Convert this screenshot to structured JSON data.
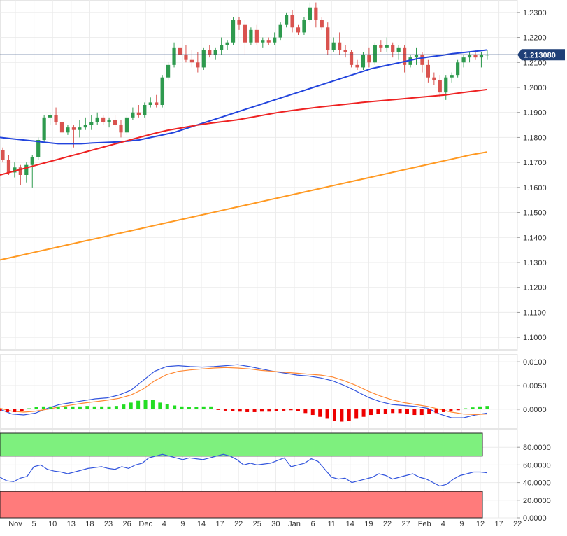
{
  "chart_data": [
    {
      "type": "candlestick",
      "panel": "price",
      "current_price": 1.21308,
      "current_price_label": "1.213080",
      "ylim": [
        1.095,
        1.235
      ],
      "y_ticks": [
        "1.2300",
        "1.2200",
        "1.2100",
        "1.2000",
        "1.1900",
        "1.1800",
        "1.1700",
        "1.1600",
        "1.1500",
        "1.1400",
        "1.1300",
        "1.1200",
        "1.1100",
        "1.1000"
      ],
      "y_tick_values": [
        1.23,
        1.22,
        1.21,
        1.2,
        1.19,
        1.18,
        1.17,
        1.16,
        1.15,
        1.14,
        1.13,
        1.12,
        1.11,
        1.1
      ],
      "x_ticks": [
        "Nov",
        "5",
        "10",
        "13",
        "18",
        "23",
        "26",
        "Dec",
        "4",
        "9",
        "14",
        "17",
        "22",
        "25",
        "30",
        "Jan",
        "6",
        "11",
        "14",
        "19",
        "22",
        "27",
        "Feb",
        "4",
        "9",
        "12",
        "17",
        "22"
      ],
      "candles_ohlc": [
        [
          1.175,
          1.176,
          1.17,
          1.171
        ],
        [
          1.171,
          1.173,
          1.165,
          1.166
        ],
        [
          1.166,
          1.17,
          1.164,
          1.168
        ],
        [
          1.168,
          1.169,
          1.161,
          1.165
        ],
        [
          1.165,
          1.17,
          1.162,
          1.169
        ],
        [
          1.169,
          1.173,
          1.16,
          1.172
        ],
        [
          1.172,
          1.18,
          1.171,
          1.179
        ],
        [
          1.179,
          1.189,
          1.178,
          1.188
        ],
        [
          1.188,
          1.19,
          1.185,
          1.189
        ],
        [
          1.189,
          1.192,
          1.185,
          1.186
        ],
        [
          1.186,
          1.188,
          1.18,
          1.182
        ],
        [
          1.182,
          1.185,
          1.181,
          1.184
        ],
        [
          1.184,
          1.185,
          1.176,
          1.183
        ],
        [
          1.183,
          1.187,
          1.18,
          1.184
        ],
        [
          1.184,
          1.188,
          1.183,
          1.185
        ],
        [
          1.185,
          1.189,
          1.183,
          1.186
        ],
        [
          1.186,
          1.19,
          1.185,
          1.188
        ],
        [
          1.188,
          1.189,
          1.185,
          1.186
        ],
        [
          1.186,
          1.188,
          1.184,
          1.187
        ],
        [
          1.187,
          1.189,
          1.184,
          1.185
        ],
        [
          1.185,
          1.187,
          1.18,
          1.182
        ],
        [
          1.182,
          1.189,
          1.181,
          1.188
        ],
        [
          1.188,
          1.192,
          1.187,
          1.19
        ],
        [
          1.19,
          1.193,
          1.188,
          1.189
        ],
        [
          1.189,
          1.194,
          1.188,
          1.193
        ],
        [
          1.193,
          1.196,
          1.192,
          1.194
        ],
        [
          1.194,
          1.197,
          1.192,
          1.193
        ],
        [
          1.193,
          1.205,
          1.192,
          1.204
        ],
        [
          1.204,
          1.21,
          1.203,
          1.209
        ],
        [
          1.209,
          1.218,
          1.208,
          1.216
        ],
        [
          1.216,
          1.217,
          1.211,
          1.213
        ],
        [
          1.213,
          1.217,
          1.21,
          1.211
        ],
        [
          1.211,
          1.215,
          1.208,
          1.21
        ],
        [
          1.21,
          1.214,
          1.206,
          1.208
        ],
        [
          1.208,
          1.216,
          1.207,
          1.215
        ],
        [
          1.215,
          1.217,
          1.212,
          1.213
        ],
        [
          1.213,
          1.216,
          1.211,
          1.215
        ],
        [
          1.215,
          1.22,
          1.213,
          1.217
        ],
        [
          1.217,
          1.219,
          1.215,
          1.218
        ],
        [
          1.218,
          1.228,
          1.217,
          1.227
        ],
        [
          1.227,
          1.228,
          1.223,
          1.225
        ],
        [
          1.225,
          1.227,
          1.213,
          1.218
        ],
        [
          1.218,
          1.224,
          1.217,
          1.223
        ],
        [
          1.223,
          1.225,
          1.217,
          1.218
        ],
        [
          1.218,
          1.22,
          1.216,
          1.219
        ],
        [
          1.219,
          1.22,
          1.217,
          1.218
        ],
        [
          1.218,
          1.222,
          1.217,
          1.22
        ],
        [
          1.22,
          1.226,
          1.219,
          1.225
        ],
        [
          1.225,
          1.23,
          1.224,
          1.229
        ],
        [
          1.229,
          1.231,
          1.222,
          1.224
        ],
        [
          1.224,
          1.225,
          1.221,
          1.222
        ],
        [
          1.222,
          1.228,
          1.221,
          1.227
        ],
        [
          1.227,
          1.234,
          1.226,
          1.232
        ],
        [
          1.232,
          1.234,
          1.224,
          1.227
        ],
        [
          1.227,
          1.228,
          1.223,
          1.224
        ],
        [
          1.224,
          1.226,
          1.213,
          1.215
        ],
        [
          1.215,
          1.22,
          1.214,
          1.218
        ],
        [
          1.218,
          1.222,
          1.213,
          1.215
        ],
        [
          1.215,
          1.217,
          1.212,
          1.214
        ],
        [
          1.214,
          1.215,
          1.208,
          1.209
        ],
        [
          1.209,
          1.211,
          1.207,
          1.208
        ],
        [
          1.208,
          1.214,
          1.207,
          1.213
        ],
        [
          1.213,
          1.216,
          1.208,
          1.21
        ],
        [
          1.21,
          1.218,
          1.209,
          1.217
        ],
        [
          1.217,
          1.219,
          1.214,
          1.216
        ],
        [
          1.216,
          1.22,
          1.214,
          1.217
        ],
        [
          1.217,
          1.218,
          1.212,
          1.214
        ],
        [
          1.214,
          1.217,
          1.211,
          1.216
        ],
        [
          1.216,
          1.217,
          1.206,
          1.209
        ],
        [
          1.209,
          1.213,
          1.208,
          1.212
        ],
        [
          1.212,
          1.216,
          1.209,
          1.213
        ],
        [
          1.213,
          1.214,
          1.206,
          1.209
        ],
        [
          1.209,
          1.211,
          1.202,
          1.204
        ],
        [
          1.204,
          1.206,
          1.201,
          1.203
        ],
        [
          1.203,
          1.205,
          1.196,
          1.198
        ],
        [
          1.198,
          1.205,
          1.195,
          1.204
        ],
        [
          1.204,
          1.206,
          1.202,
          1.205
        ],
        [
          1.205,
          1.211,
          1.204,
          1.21
        ],
        [
          1.21,
          1.213,
          1.208,
          1.212
        ],
        [
          1.212,
          1.214,
          1.21,
          1.213
        ],
        [
          1.213,
          1.215,
          1.211,
          1.212
        ],
        [
          1.212,
          1.214,
          1.208,
          1.213
        ],
        [
          1.213,
          1.215,
          1.211,
          1.2131
        ]
      ],
      "series": [
        {
          "name": "",
          "color": "#2244dd",
          "values": [
            1.18,
            1.1795,
            1.179,
            1.1785,
            1.178,
            1.1775,
            1.1775,
            1.1775,
            1.1778,
            1.178,
            1.1782,
            1.1785,
            1.179,
            1.18,
            1.181,
            1.182,
            1.1835,
            1.185,
            1.1865,
            1.188,
            1.1895,
            1.191,
            1.1925,
            1.194,
            1.1955,
            1.197,
            1.1985,
            1.2,
            1.2015,
            1.203,
            1.2045,
            1.206,
            1.2075,
            1.2085,
            1.2095,
            1.2105,
            1.2115,
            1.2122,
            1.2128,
            1.2135,
            1.214,
            1.2145,
            1.215
          ]
        },
        {
          "name": "",
          "color": "#ee2222",
          "values": [
            1.165,
            1.1665,
            1.168,
            1.1695,
            1.171,
            1.1725,
            1.174,
            1.1755,
            1.177,
            1.1785,
            1.18,
            1.1815,
            1.1828,
            1.1838,
            1.1848,
            1.1856,
            1.1863,
            1.187,
            1.188,
            1.189,
            1.19,
            1.1908,
            1.1915,
            1.1922,
            1.1928,
            1.1934,
            1.194,
            1.1945,
            1.195,
            1.1955,
            1.196,
            1.1965,
            1.197,
            1.1978,
            1.1985,
            1.1992
          ]
        },
        {
          "name": "",
          "color": "#ff9922",
          "values": [
            1.131,
            1.1325,
            1.134,
            1.1355,
            1.137,
            1.1385,
            1.14,
            1.1415,
            1.143,
            1.1445,
            1.146,
            1.1475,
            1.149,
            1.1505,
            1.152,
            1.1535,
            1.155,
            1.1565,
            1.158,
            1.1595,
            1.161,
            1.1625,
            1.164,
            1.1655,
            1.167,
            1.1685,
            1.17,
            1.1715,
            1.173,
            1.1742
          ]
        }
      ]
    },
    {
      "type": "macd",
      "panel": "indicator",
      "ylim": [
        -0.004,
        0.0115
      ],
      "y_ticks": [
        "0.0100",
        "0.0050",
        "0.0000"
      ],
      "y_tick_values": [
        0.01,
        0.005,
        0.0
      ],
      "series": [
        {
          "name": "",
          "color": "#3355dd",
          "values": [
            0.0,
            -0.001,
            -0.0012,
            -0.0008,
            0.0002,
            0.001,
            0.0014,
            0.0018,
            0.0022,
            0.0024,
            0.003,
            0.004,
            0.006,
            0.008,
            0.009,
            0.0092,
            0.009,
            0.0089,
            0.009,
            0.0092,
            0.0094,
            0.009,
            0.0085,
            0.008,
            0.0076,
            0.0072,
            0.007,
            0.0066,
            0.006,
            0.005,
            0.0038,
            0.0025,
            0.0016,
            0.001,
            0.0008,
            0.0006,
            0.0002,
            -0.001,
            -0.0018,
            -0.0018,
            -0.0012,
            -0.0008
          ]
        },
        {
          "name": "",
          "color": "#ff8833",
          "values": [
            0.0002,
            -0.0004,
            -0.0006,
            -0.0004,
            0.0,
            0.0005,
            0.0009,
            0.0013,
            0.0016,
            0.0019,
            0.0023,
            0.003,
            0.0042,
            0.006,
            0.0073,
            0.008,
            0.0083,
            0.0085,
            0.0087,
            0.0088,
            0.0087,
            0.0085,
            0.0082,
            0.008,
            0.0078,
            0.0076,
            0.0074,
            0.0072,
            0.0068,
            0.006,
            0.005,
            0.0038,
            0.0028,
            0.002,
            0.0014,
            0.001,
            0.0006,
            0.0,
            -0.0006,
            -0.001,
            -0.0011,
            -0.001
          ]
        }
      ],
      "histogram": [
        -0.0004,
        -0.0006,
        -0.0006,
        -0.0004,
        0.0002,
        0.0005,
        0.0006,
        0.0006,
        0.0006,
        0.0006,
        0.0006,
        0.0006,
        0.0007,
        0.0006,
        0.0006,
        0.0006,
        0.0007,
        0.001,
        0.0014,
        0.0018,
        0.002,
        0.002,
        0.0014,
        0.0011,
        0.0008,
        0.0006,
        0.0005,
        0.0005,
        0.0006,
        0.0006,
        -0.0001,
        -0.0003,
        -0.0004,
        -0.0005,
        -0.0006,
        -0.0006,
        -0.0005,
        -0.0005,
        -0.0004,
        -0.0003,
        -0.0002,
        -0.0004,
        -0.0008,
        -0.0012,
        -0.0016,
        -0.002,
        -0.0024,
        -0.0026,
        -0.0024,
        -0.002,
        -0.0016,
        -0.0012,
        -0.001,
        -0.001,
        -0.0008,
        -0.0008,
        -0.001,
        -0.0012,
        -0.0012,
        -0.001,
        -0.0008,
        -0.0006,
        -0.0004,
        -0.0002,
        0.0002,
        0.0004,
        0.0006,
        0.0007
      ]
    },
    {
      "type": "line",
      "panel": "rsi",
      "ylim": [
        0,
        100
      ],
      "overbought": 70,
      "oversold": 30,
      "y_ticks": [
        "80.0000",
        "60.0000",
        "40.0000",
        "20.0000",
        "0.0000"
      ],
      "y_tick_values": [
        80,
        60,
        40,
        20,
        0
      ],
      "series": [
        {
          "name": "",
          "color": "#3355dd",
          "values": [
            46,
            42,
            41,
            45,
            47,
            58,
            60,
            55,
            53,
            52,
            50,
            52,
            54,
            56,
            57,
            58,
            56,
            55,
            58,
            56,
            60,
            62,
            68,
            70,
            72,
            70,
            68,
            66,
            68,
            67,
            66,
            68,
            70,
            72,
            70,
            66,
            60,
            62,
            60,
            61,
            62,
            65,
            68,
            58,
            60,
            62,
            67,
            64,
            55,
            46,
            44,
            45,
            40,
            42,
            44,
            46,
            50,
            48,
            44,
            46,
            48,
            50,
            46,
            44,
            40,
            36,
            38,
            44,
            48,
            50,
            52,
            52,
            51
          ]
        }
      ]
    }
  ]
}
